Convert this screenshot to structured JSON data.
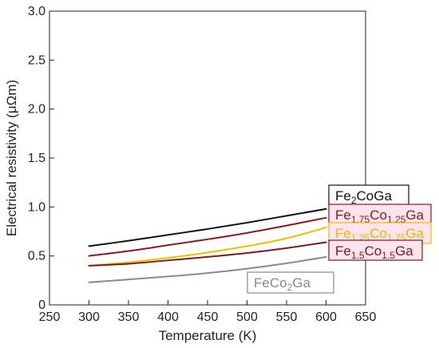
{
  "chart_data": {
    "type": "line",
    "xlabel": "Temperature (K)",
    "ylabel": "Electrical resistivity (μΩm)",
    "xlim": [
      250,
      650
    ],
    "ylim": [
      0,
      3.0
    ],
    "xticks": [
      "250",
      "300",
      "350",
      "400",
      "450",
      "500",
      "550",
      "600",
      "650"
    ],
    "yticks": [
      "0",
      "0.5",
      "1.0",
      "1.5",
      "2.0",
      "2.5",
      "3.0"
    ],
    "grid": false,
    "legend": "right",
    "series": [
      {
        "name": "Fe2CoGa",
        "label_parts": [
          [
            "Fe",
            ""
          ],
          [
            "2",
            "sub"
          ],
          [
            "CoGa",
            ""
          ]
        ],
        "color": "#111111",
        "x": [
          300,
          350,
          400,
          450,
          500,
          550,
          600
        ],
        "y": [
          0.6,
          0.655,
          0.715,
          0.775,
          0.84,
          0.91,
          0.98
        ]
      },
      {
        "name": "Fe1.75Co1.25Ga",
        "label_parts": [
          [
            "Fe",
            ""
          ],
          [
            "1.75",
            "sub"
          ],
          [
            "Co",
            ""
          ],
          [
            "1.25",
            "sub"
          ],
          [
            "Ga",
            ""
          ]
        ],
        "color": "#8b1a1a",
        "x": [
          300,
          350,
          400,
          450,
          500,
          550,
          600
        ],
        "y": [
          0.5,
          0.55,
          0.61,
          0.67,
          0.735,
          0.81,
          0.89
        ]
      },
      {
        "name": "Fe1.25Co1.75Ga",
        "label_parts": [
          [
            "Fe",
            ""
          ],
          [
            "1.25",
            "sub"
          ],
          [
            "Co",
            ""
          ],
          [
            "1.75",
            "sub"
          ],
          [
            "Ga",
            ""
          ]
        ],
        "color": "#e8c000",
        "x": [
          300,
          350,
          400,
          450,
          500,
          550,
          600
        ],
        "y": [
          0.4,
          0.435,
          0.48,
          0.535,
          0.6,
          0.68,
          0.79
        ]
      },
      {
        "name": "Fe1.5Co1.5Ga",
        "label_parts": [
          [
            "Fe",
            ""
          ],
          [
            "1.5",
            "sub"
          ],
          [
            "Co",
            ""
          ],
          [
            "1.5",
            "sub"
          ],
          [
            "Ga",
            ""
          ]
        ],
        "color": "#7a1c1c",
        "x": [
          300,
          350,
          400,
          450,
          500,
          550,
          600
        ],
        "y": [
          0.4,
          0.42,
          0.455,
          0.49,
          0.53,
          0.58,
          0.64
        ]
      },
      {
        "name": "FeCo2Ga",
        "label_parts": [
          [
            "FeCo",
            ""
          ],
          [
            "2",
            "sub"
          ],
          [
            "Ga",
            ""
          ]
        ],
        "color": "#8a8a8a",
        "x": [
          300,
          350,
          400,
          450,
          500,
          550,
          600
        ],
        "y": [
          0.23,
          0.26,
          0.29,
          0.325,
          0.37,
          0.425,
          0.49
        ]
      }
    ]
  }
}
